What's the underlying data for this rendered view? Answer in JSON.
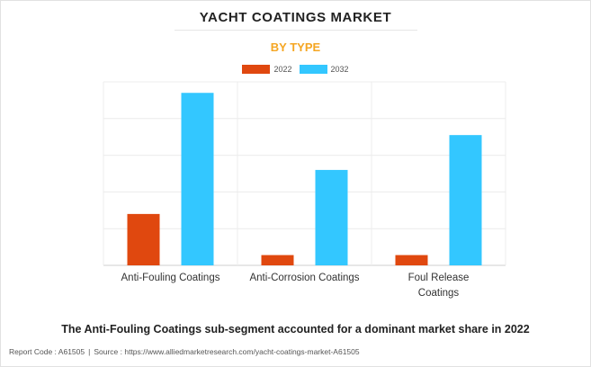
{
  "chart_data": {
    "type": "bar",
    "title": "YACHT COATINGS MARKET",
    "subtitle": "BY TYPE",
    "categories": [
      [
        "Anti-Fouling Coatings"
      ],
      [
        "Anti-Corrosion Coatings"
      ],
      [
        "Foul Release",
        "Coatings"
      ]
    ],
    "series": [
      {
        "name": "2022",
        "color": "#e0480f",
        "values": [
          1.4,
          0.28,
          0.28
        ]
      },
      {
        "name": "2032",
        "color": "#33c7ff",
        "values": [
          4.7,
          2.6,
          3.55
        ]
      }
    ],
    "ylim": [
      0,
      5
    ],
    "y_gridlines": [
      0,
      1,
      2,
      3,
      4,
      5
    ],
    "y_tick_labels_shown": false,
    "grid": true,
    "legend_position": "top-center"
  },
  "footnote": "The Anti-Fouling Coatings sub-segment accounted for a dominant market share in 2022",
  "report_code": "Report Code : A61505",
  "source": "Source : https://www.alliedmarketresearch.com/yacht-coatings-market-A61505",
  "separator": "|"
}
